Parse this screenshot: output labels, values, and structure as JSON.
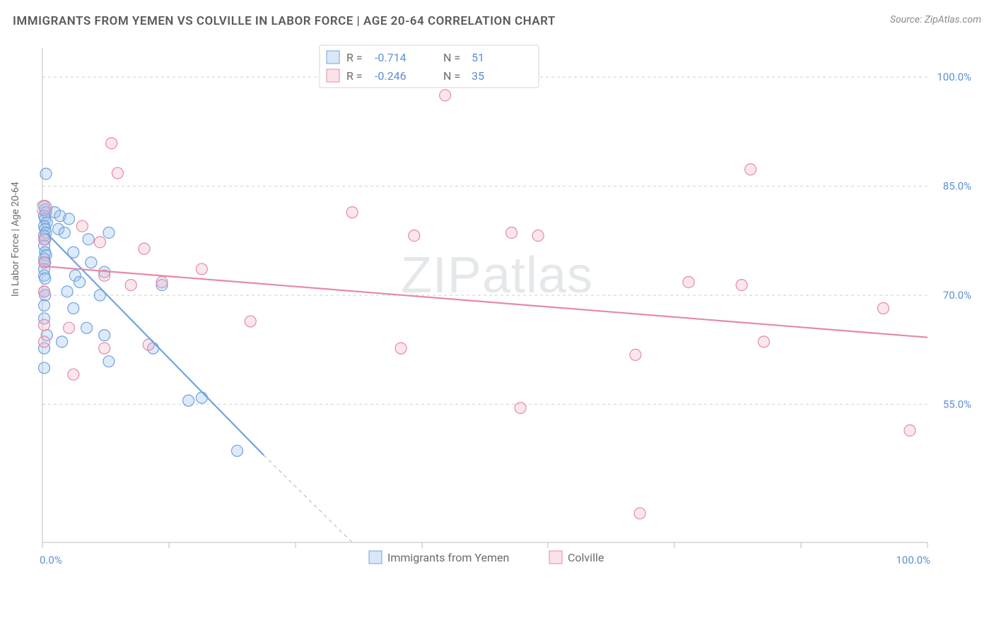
{
  "title": "IMMIGRANTS FROM YEMEN VS COLVILLE IN LABOR FORCE | AGE 20-64 CORRELATION CHART",
  "source_label": "Source: ZipAtlas.com",
  "y_axis_label": "In Labor Force | Age 20-64",
  "watermark": {
    "bold": "ZIP",
    "thin": "atlas"
  },
  "chart": {
    "type": "scatter",
    "xlim": [
      0,
      100
    ],
    "ylim": [
      36,
      104
    ],
    "x_ticks": [
      0,
      14.3,
      28.6,
      42.9,
      57.1,
      71.4,
      85.7,
      100
    ],
    "x_tick_labels": {
      "0": "0.0%",
      "100": "100.0%"
    },
    "y_ticks": [
      55,
      70,
      85,
      100
    ],
    "y_tick_labels": {
      "55": "55.0%",
      "70": "70.0%",
      "85": "85.0%",
      "100": "100.0%"
    },
    "background_color": "#ffffff",
    "grid_color": "#cfcfcf",
    "axis_color": "#bdbdbd",
    "label_color": "#5b8fd6",
    "marker_radius": 8,
    "marker_radius_large": 11,
    "series": [
      {
        "name": "Immigrants from Yemen",
        "color": "#6fa3e0",
        "fill": "#9fc2ea",
        "R": "-0.714",
        "N": "51",
        "trend": {
          "x1": 0.5,
          "y1": 78.5,
          "x2": 25,
          "y2": 48,
          "ext_x2": 35,
          "ext_y2": 36
        },
        "points": [
          [
            0.4,
            86.7
          ],
          [
            0.2,
            82.2
          ],
          [
            0.3,
            81.8
          ],
          [
            0.4,
            81.4
          ],
          [
            0.2,
            80.9
          ],
          [
            0.3,
            80.5
          ],
          [
            0.5,
            80.0
          ],
          [
            1.4,
            81.4
          ],
          [
            2.0,
            80.9
          ],
          [
            3.0,
            80.5
          ],
          [
            0.2,
            79.5
          ],
          [
            0.3,
            79.1
          ],
          [
            0.4,
            78.6
          ],
          [
            0.2,
            78.2
          ],
          [
            0.3,
            77.7
          ],
          [
            1.8,
            79.1
          ],
          [
            2.5,
            78.6
          ],
          [
            0.2,
            76.8
          ],
          [
            0.3,
            75.9
          ],
          [
            0.4,
            75.5
          ],
          [
            0.2,
            75.0
          ],
          [
            0.3,
            74.5
          ],
          [
            0.2,
            73.6
          ],
          [
            5.2,
            77.7
          ],
          [
            7.5,
            78.6
          ],
          [
            3.5,
            75.9
          ],
          [
            0.2,
            72.7
          ],
          [
            0.3,
            72.3
          ],
          [
            5.5,
            74.5
          ],
          [
            3.7,
            72.7
          ],
          [
            0.2,
            70.5
          ],
          [
            0.3,
            70.0
          ],
          [
            4.2,
            71.8
          ],
          [
            7.0,
            73.2
          ],
          [
            0.2,
            68.6
          ],
          [
            2.8,
            70.5
          ],
          [
            0.2,
            66.8
          ],
          [
            3.5,
            68.2
          ],
          [
            6.5,
            70.0
          ],
          [
            13.5,
            71.4
          ],
          [
            0.5,
            64.5
          ],
          [
            5.0,
            65.5
          ],
          [
            0.2,
            62.7
          ],
          [
            2.2,
            63.6
          ],
          [
            7.0,
            64.5
          ],
          [
            12.5,
            62.7
          ],
          [
            16.5,
            55.5
          ],
          [
            18.0,
            55.9
          ],
          [
            22.0,
            48.6
          ],
          [
            7.5,
            60.9
          ],
          [
            0.2,
            60.0
          ]
        ]
      },
      {
        "name": "Colville",
        "color": "#e68aa4",
        "fill": "#f4b6c8",
        "R": "-0.246",
        "N": "35",
        "trend": {
          "x1": 0,
          "y1": 74.0,
          "x2": 100,
          "y2": 64.2
        },
        "points": [
          [
            45.5,
            97.5
          ],
          [
            7.8,
            90.9
          ],
          [
            8.5,
            86.8
          ],
          [
            80.0,
            87.3
          ],
          [
            0.2,
            82.0,
            true
          ],
          [
            4.5,
            79.5
          ],
          [
            35.0,
            81.4
          ],
          [
            6.5,
            77.3
          ],
          [
            11.5,
            76.4
          ],
          [
            42.0,
            78.2
          ],
          [
            53.0,
            78.6
          ],
          [
            56.0,
            78.2
          ],
          [
            0.2,
            74.5
          ],
          [
            18.0,
            73.6
          ],
          [
            7.0,
            72.7
          ],
          [
            10.0,
            71.4
          ],
          [
            13.5,
            71.8
          ],
          [
            0.2,
            70.5
          ],
          [
            73.0,
            71.8
          ],
          [
            79.0,
            71.4
          ],
          [
            0.2,
            65.9
          ],
          [
            3.0,
            65.5
          ],
          [
            95.0,
            68.2
          ],
          [
            0.2,
            63.6
          ],
          [
            81.5,
            63.6
          ],
          [
            7.0,
            62.7
          ],
          [
            12.0,
            63.2
          ],
          [
            67.0,
            61.8
          ],
          [
            40.5,
            62.7
          ],
          [
            3.5,
            59.1
          ],
          [
            54.0,
            54.5
          ],
          [
            98.0,
            51.4
          ],
          [
            67.5,
            40.0
          ],
          [
            0.2,
            77.7
          ],
          [
            23.5,
            66.4
          ]
        ]
      }
    ]
  },
  "legend_top": {
    "rows": [
      {
        "series": 0,
        "r_label": "R =",
        "n_label": "N ="
      },
      {
        "series": 1,
        "r_label": "R =",
        "n_label": "N ="
      }
    ]
  },
  "legend_bottom": [
    {
      "series": 0
    },
    {
      "series": 1
    }
  ]
}
